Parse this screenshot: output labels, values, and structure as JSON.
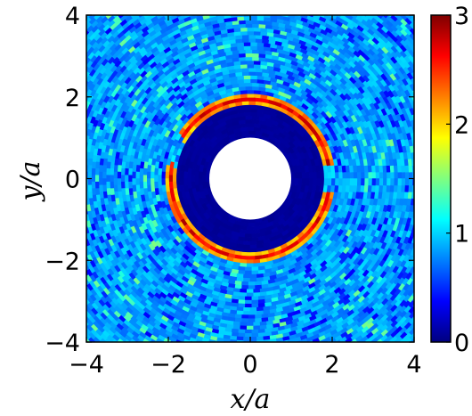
{
  "chart_data": {
    "type": "heatmap",
    "title": "",
    "xlabel": "x/a",
    "ylabel": "y/a",
    "xlim": [
      -4,
      4
    ],
    "ylim": [
      -4,
      4
    ],
    "x_ticks": [
      "−4",
      "−2",
      "0",
      "2",
      "4"
    ],
    "y_ticks": [
      "4",
      "2",
      "0",
      "−2",
      "−4"
    ],
    "grid": false,
    "colorbar": {
      "range": [
        0,
        3
      ],
      "ticks": [
        "0",
        "1",
        "2",
        "3"
      ],
      "colormap": "jet"
    },
    "field": {
      "description_units": "radial distance r in units of a",
      "hole_radius": 1.0,
      "inner_disk_radius_range": [
        1.0,
        1.85
      ],
      "inner_disk_value": 0.05,
      "ring_radius_range": [
        1.85,
        2.05
      ],
      "ring_value": 2.9,
      "ring_gaps_angles_deg": [
        [
          -10,
          10
        ],
        [
          150,
          170
        ],
        [
          205,
          215
        ]
      ],
      "background_value": 0.85,
      "background_noise": [
        0.45,
        1.35
      ]
    }
  },
  "colors": {
    "hole": "#ffffff",
    "colormap_stops": [
      "#00007f",
      "#0000ff",
      "#007fff",
      "#00ffff",
      "#7fff7f",
      "#ffff00",
      "#ff7f00",
      "#ff0000",
      "#7f0000"
    ]
  }
}
